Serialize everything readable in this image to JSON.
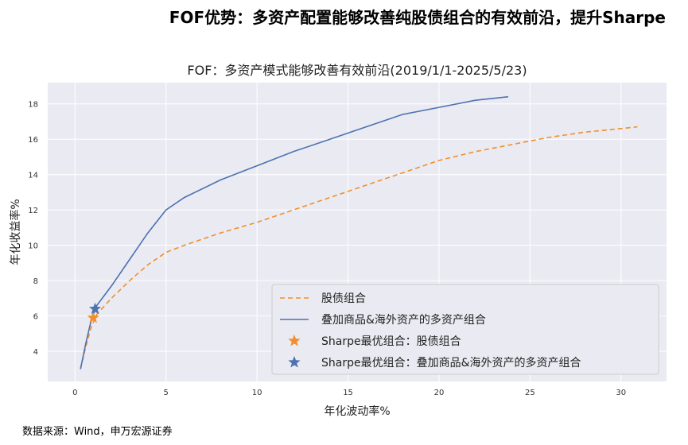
{
  "page": {
    "title": "FOF优势：多资产配置能够改善纯股债组合的有效前沿，提升Sharpe",
    "source": "数据来源：Wind，申万宏源证券"
  },
  "chart_data": {
    "type": "line",
    "title": "FOF：多资产模式能够改善有效前沿(2019/1/1-2025/5/23)",
    "xlabel": "年化波动率%",
    "ylabel": "年化收益率%",
    "xlim": [
      -1.5,
      32.5
    ],
    "ylim": [
      2.3,
      19.2
    ],
    "xticks": [
      0,
      5,
      10,
      15,
      20,
      25,
      30
    ],
    "yticks": [
      4,
      6,
      8,
      10,
      12,
      14,
      16,
      18
    ],
    "grid": true,
    "legend_position": "lower-right",
    "series": [
      {
        "name": "股债组合",
        "style": "dashed",
        "color": "#f28e2b",
        "points": [
          [
            0.3,
            3.0
          ],
          [
            0.6,
            4.3
          ],
          [
            0.9,
            5.4
          ],
          [
            1.2,
            6.1
          ],
          [
            2.0,
            7.0
          ],
          [
            3.0,
            8.0
          ],
          [
            4.0,
            8.9
          ],
          [
            5.0,
            9.6
          ],
          [
            6.0,
            10.0
          ],
          [
            8.0,
            10.7
          ],
          [
            10.0,
            11.3
          ],
          [
            12.0,
            12.0
          ],
          [
            14.0,
            12.7
          ],
          [
            16.0,
            13.4
          ],
          [
            18.0,
            14.1
          ],
          [
            20.0,
            14.8
          ],
          [
            22.0,
            15.3
          ],
          [
            24.0,
            15.7
          ],
          [
            26.0,
            16.1
          ],
          [
            28.0,
            16.4
          ],
          [
            30.0,
            16.6
          ],
          [
            30.9,
            16.7
          ]
        ]
      },
      {
        "name": "叠加商品&海外资产的多资产组合",
        "style": "solid",
        "color": "#4c72b0",
        "points": [
          [
            0.3,
            3.0
          ],
          [
            0.6,
            4.5
          ],
          [
            0.9,
            5.8
          ],
          [
            1.2,
            6.6
          ],
          [
            2.0,
            7.7
          ],
          [
            3.0,
            9.2
          ],
          [
            4.0,
            10.7
          ],
          [
            5.0,
            12.0
          ],
          [
            6.0,
            12.7
          ],
          [
            8.0,
            13.7
          ],
          [
            10.0,
            14.5
          ],
          [
            12.0,
            15.3
          ],
          [
            14.0,
            16.0
          ],
          [
            16.0,
            16.7
          ],
          [
            18.0,
            17.4
          ],
          [
            20.0,
            17.8
          ],
          [
            22.0,
            18.2
          ],
          [
            23.8,
            18.4
          ]
        ]
      }
    ],
    "markers": [
      {
        "name": "Sharpe最优组合：股债组合",
        "x": 1.0,
        "y": 5.9,
        "color": "#f28e2b",
        "symbol": "star"
      },
      {
        "name": "Sharpe最优组合：叠加商品&海外资产的多资产组合",
        "x": 1.1,
        "y": 6.4,
        "color": "#4c72b0",
        "symbol": "star"
      }
    ]
  }
}
